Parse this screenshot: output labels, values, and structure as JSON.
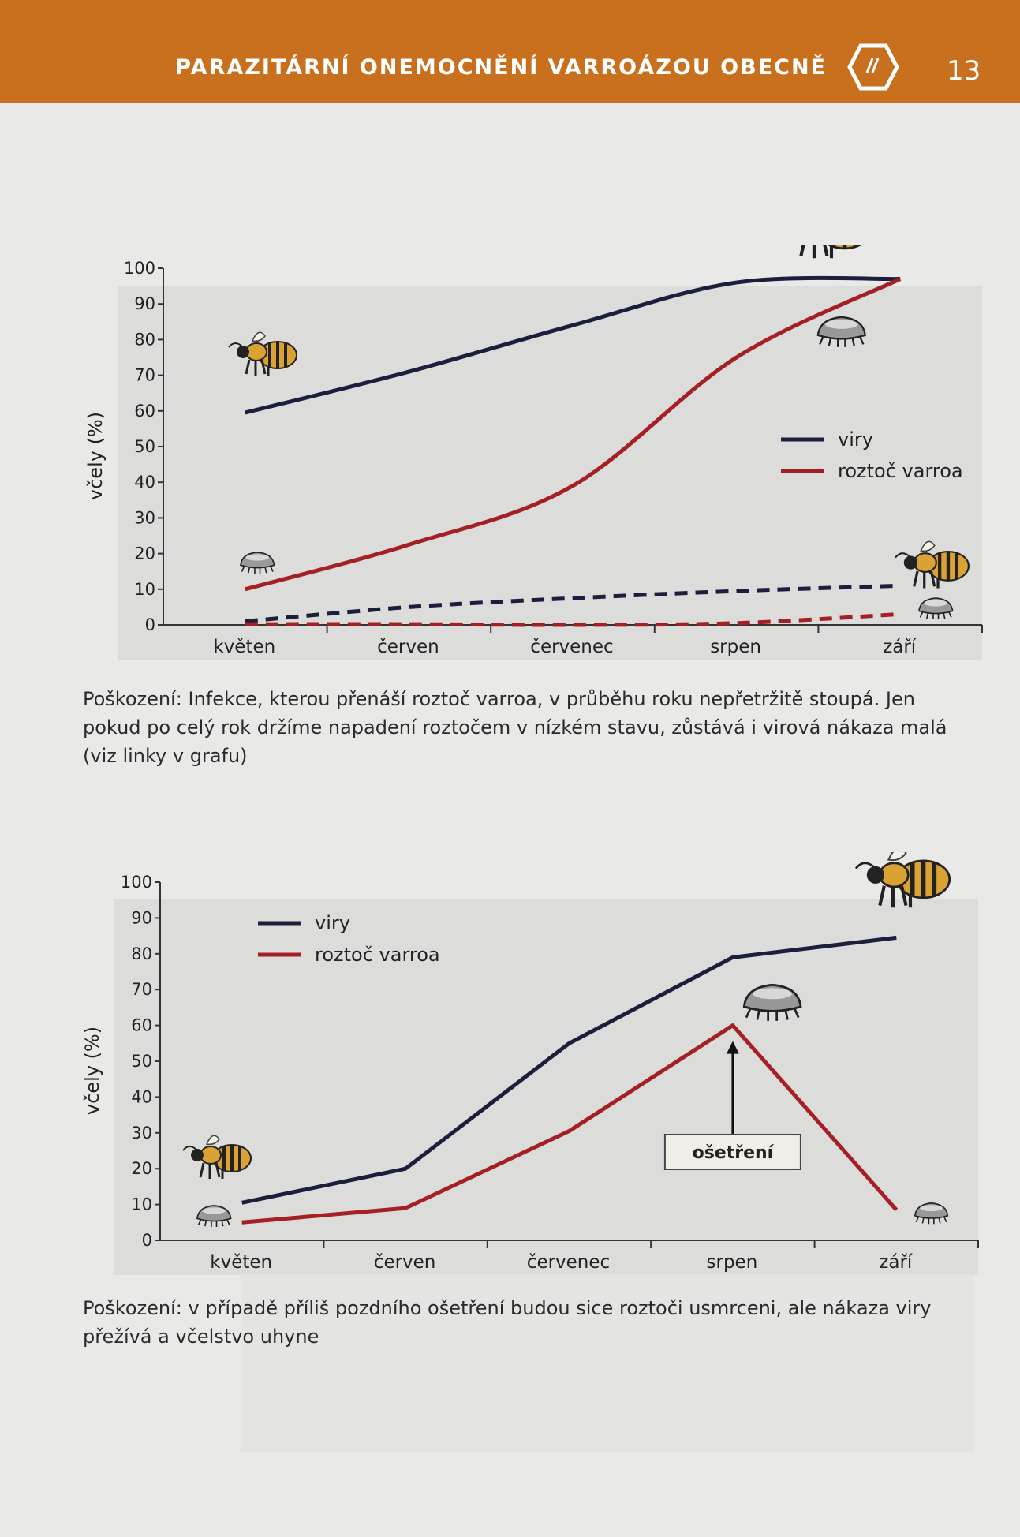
{
  "header": {
    "title": "PARAZITÁRNÍ ONEMOCNĚNÍ VARROÁZOU OBECNĚ",
    "page_number": "13",
    "icon": "hexagon-icon",
    "color": "#c8701e"
  },
  "chart_data": [
    {
      "type": "line",
      "categories": [
        "květen",
        "červen",
        "červenec",
        "srpen",
        "září"
      ],
      "ylabel": "včely (%)",
      "ylim": [
        0,
        100
      ],
      "yticks": [
        0,
        10,
        20,
        30,
        40,
        50,
        60,
        70,
        80,
        90,
        100
      ],
      "legend_position": "right",
      "series": [
        {
          "name": "viry",
          "color": "#1b1f3b",
          "style": "solid",
          "values": [
            59.5,
            71,
            84,
            96,
            97
          ]
        },
        {
          "name": "roztoč varroa",
          "color": "#a52024",
          "style": "solid",
          "values": [
            10,
            22.5,
            39,
            75,
            97
          ]
        },
        {
          "color": "#1b1f3b",
          "style": "dashed",
          "values": [
            1,
            5,
            7.5,
            9.5,
            11
          ]
        },
        {
          "color": "#a52024",
          "style": "dashed",
          "values": [
            0.2,
            0.2,
            0,
            0.5,
            3
          ]
        }
      ],
      "caption": "Poškození: Infekce, kterou přenáší roztoč varroa, v průběhu roku nepřetržitě stoupá. Jen pokud po celý rok držíme napadení roztočem v nízkém stavu, zůstává i virová nákaza malá (viz linky v grafu)"
    },
    {
      "type": "line",
      "categories": [
        "květen",
        "červen",
        "červenec",
        "srpen",
        "září"
      ],
      "ylabel": "včely (%)",
      "ylim": [
        0,
        100
      ],
      "yticks": [
        0,
        10,
        20,
        30,
        40,
        50,
        60,
        70,
        80,
        90,
        100
      ],
      "legend_position": "top-left",
      "series": [
        {
          "name": "viry",
          "color": "#1b1f3b",
          "style": "solid",
          "values": [
            10.5,
            20,
            55,
            79,
            84.5
          ]
        },
        {
          "name": "roztoč varroa",
          "color": "#a52024",
          "style": "solid",
          "values": [
            5,
            9,
            30.5,
            60,
            8.5
          ]
        }
      ],
      "annotation": {
        "text": "ošetření",
        "category": "srpen"
      },
      "caption": "Poškození: v případě příliš pozdního ošetření budou sice roztoči usmrceni, ale nákaza viry přežívá a včelstvo uhyne"
    }
  ]
}
